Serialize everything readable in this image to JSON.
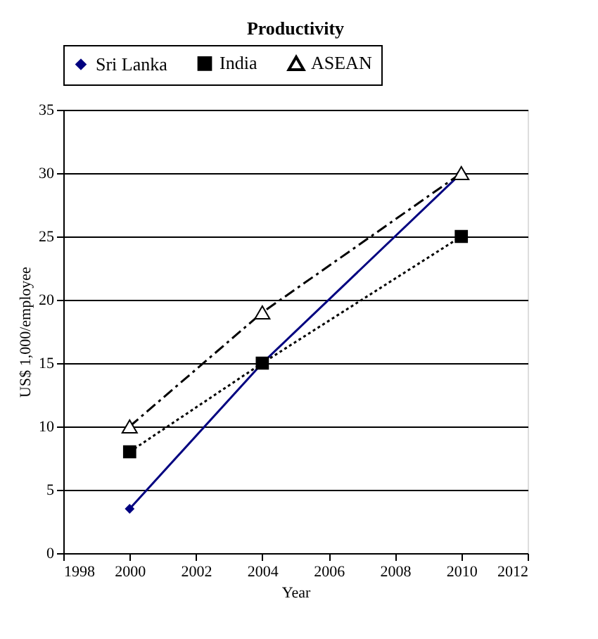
{
  "chart_data": {
    "type": "line",
    "title": "Productivity",
    "xlabel": "Year",
    "ylabel": "US$ 1,000/employee",
    "x": [
      2000,
      2004,
      2010
    ],
    "series": [
      {
        "name": "Sri Lanka",
        "color": "#000080",
        "values": [
          3.5,
          15,
          30
        ],
        "marker": "diamond",
        "line_style": "solid"
      },
      {
        "name": "India",
        "color": "#000000",
        "values": [
          8,
          15,
          25
        ],
        "marker": "square",
        "line_style": "dotted"
      },
      {
        "name": "ASEAN",
        "color": "#000000",
        "values": [
          10,
          19,
          30
        ],
        "marker": "triangle",
        "line_style": "dashed"
      }
    ],
    "xlim": [
      1998,
      2012
    ],
    "xticks": [
      1998,
      2000,
      2002,
      2004,
      2006,
      2008,
      2010,
      2012
    ],
    "ylim": [
      0,
      35
    ],
    "yticks": [
      0,
      5,
      10,
      15,
      20,
      25,
      30,
      35
    ],
    "grid": "y",
    "legend": "top"
  }
}
